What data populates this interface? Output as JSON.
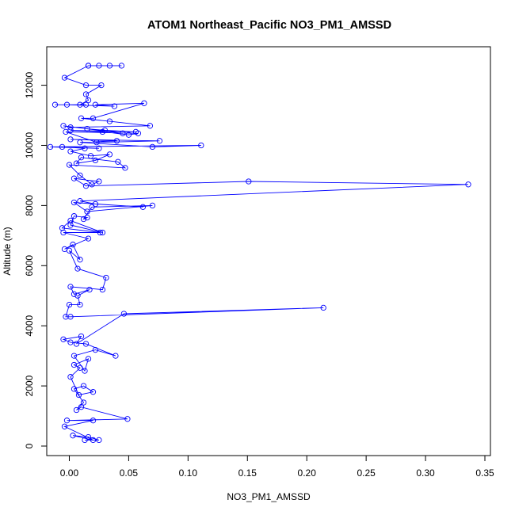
{
  "chart_data": {
    "type": "line",
    "title": "ATOM1 Northeast_Pacific NO3_PM1_AMSSD",
    "xlabel": "NO3_PM1_AMSSD",
    "ylabel": "Altitude (m)",
    "xlim": [
      -0.015,
      0.35
    ],
    "ylim": [
      0,
      12700
    ],
    "xticks": [
      0.0,
      0.05,
      0.1,
      0.15,
      0.2,
      0.25,
      0.3,
      0.35
    ],
    "xtick_labels": [
      "0.00",
      "0.05",
      "0.10",
      "0.15",
      "0.20",
      "0.25",
      "0.30",
      "0.35"
    ],
    "yticks": [
      0,
      2000,
      4000,
      6000,
      8000,
      10000,
      12000
    ],
    "ytick_labels": [
      "0",
      "2000",
      "4000",
      "6000",
      "8000",
      "10000",
      "12000"
    ],
    "grid": false,
    "series_color": "#0000ff",
    "marker": "open-circle",
    "series": [
      {
        "name": "",
        "points": [
          [
            0.013,
            200
          ],
          [
            0.025,
            200
          ],
          [
            0.016,
            300
          ],
          [
            0.003,
            350
          ],
          [
            0.02,
            200
          ],
          [
            -0.004,
            650
          ],
          [
            0.02,
            850
          ],
          [
            -0.002,
            850
          ],
          [
            0.049,
            900
          ],
          [
            0.01,
            1300
          ],
          [
            0.006,
            1200
          ],
          [
            0.012,
            1450
          ],
          [
            0.004,
            1900
          ],
          [
            0.012,
            2000
          ],
          [
            0.02,
            1800
          ],
          [
            0.008,
            1700
          ],
          [
            0.001,
            2300
          ],
          [
            0.009,
            2600
          ],
          [
            0.004,
            2700
          ],
          [
            0.016,
            2900
          ],
          [
            0.013,
            2500
          ],
          [
            0.004,
            3000
          ],
          [
            0.022,
            3200
          ],
          [
            0.039,
            3000
          ],
          [
            0.014,
            3400
          ],
          [
            0.001,
            3450
          ],
          [
            -0.005,
            3550
          ],
          [
            0.01,
            3650
          ],
          [
            0.006,
            3400
          ],
          [
            0.046,
            4400
          ],
          [
            0.214,
            4600
          ],
          [
            0.001,
            4300
          ],
          [
            -0.003,
            4300
          ],
          [
            0.0,
            4700
          ],
          [
            0.009,
            4700
          ],
          [
            0.007,
            5000
          ],
          [
            0.017,
            5200
          ],
          [
            0.004,
            5050
          ],
          [
            0.001,
            5300
          ],
          [
            0.028,
            5200
          ],
          [
            0.031,
            5600
          ],
          [
            0.007,
            5900
          ],
          [
            0.0,
            6500
          ],
          [
            0.009,
            6200
          ],
          [
            0.003,
            6700
          ],
          [
            -0.004,
            6550
          ],
          [
            0.016,
            6900
          ],
          [
            -0.005,
            7100
          ],
          [
            0.026,
            7100
          ],
          [
            -0.006,
            7250
          ],
          [
            0.001,
            7500
          ],
          [
            0.028,
            7100
          ],
          [
            0.001,
            7350
          ],
          [
            0.004,
            7650
          ],
          [
            0.015,
            7600
          ],
          [
            0.012,
            7550
          ],
          [
            0.019,
            7950
          ],
          [
            0.07,
            8000
          ],
          [
            0.015,
            7800
          ],
          [
            0.004,
            8100
          ],
          [
            0.062,
            7950
          ],
          [
            0.022,
            8050
          ],
          [
            0.009,
            8150
          ],
          [
            0.336,
            8700
          ],
          [
            0.151,
            8800
          ],
          [
            0.014,
            8650
          ],
          [
            0.004,
            8900
          ],
          [
            0.025,
            8800
          ],
          [
            0.019,
            8700
          ],
          [
            0.009,
            9000
          ],
          [
            0.0,
            9350
          ],
          [
            0.047,
            9250
          ],
          [
            0.041,
            9450
          ],
          [
            0.01,
            9600
          ],
          [
            0.006,
            9400
          ],
          [
            0.022,
            9500
          ],
          [
            0.034,
            9700
          ],
          [
            0.018,
            9650
          ],
          [
            0.001,
            9800
          ],
          [
            0.013,
            9900
          ],
          [
            -0.006,
            9950
          ],
          [
            0.025,
            9900
          ],
          [
            -0.016,
            9950
          ],
          [
            0.111,
            10000
          ],
          [
            0.07,
            9950
          ],
          [
            0.009,
            10100
          ],
          [
            0.04,
            10150
          ],
          [
            0.001,
            10200
          ],
          [
            0.076,
            10150
          ],
          [
            0.023,
            10100
          ],
          [
            -0.003,
            10450
          ],
          [
            0.058,
            10400
          ],
          [
            0.05,
            10350
          ],
          [
            0.028,
            10450
          ],
          [
            0.001,
            10500
          ],
          [
            0.056,
            10450
          ],
          [
            0.03,
            10500
          ],
          [
            0.015,
            10550
          ],
          [
            0.045,
            10400
          ],
          [
            -0.005,
            10650
          ],
          [
            0.001,
            10600
          ],
          [
            0.068,
            10650
          ],
          [
            0.034,
            10800
          ],
          [
            0.01,
            10900
          ],
          [
            0.02,
            10900
          ],
          [
            0.063,
            11400
          ],
          [
            0.022,
            11350
          ],
          [
            0.038,
            11300
          ],
          [
            -0.002,
            11350
          ],
          [
            0.014,
            11350
          ],
          [
            -0.012,
            11350
          ],
          [
            0.009,
            11350
          ],
          [
            0.016,
            11500
          ],
          [
            0.014,
            11700
          ],
          [
            0.027,
            12000
          ],
          [
            0.014,
            12000
          ],
          [
            -0.004,
            12250
          ],
          [
            0.016,
            12650
          ],
          [
            0.044,
            12650
          ],
          [
            0.034,
            12650
          ],
          [
            0.025,
            12650
          ],
          [
            0.016,
            12650
          ]
        ]
      }
    ]
  }
}
